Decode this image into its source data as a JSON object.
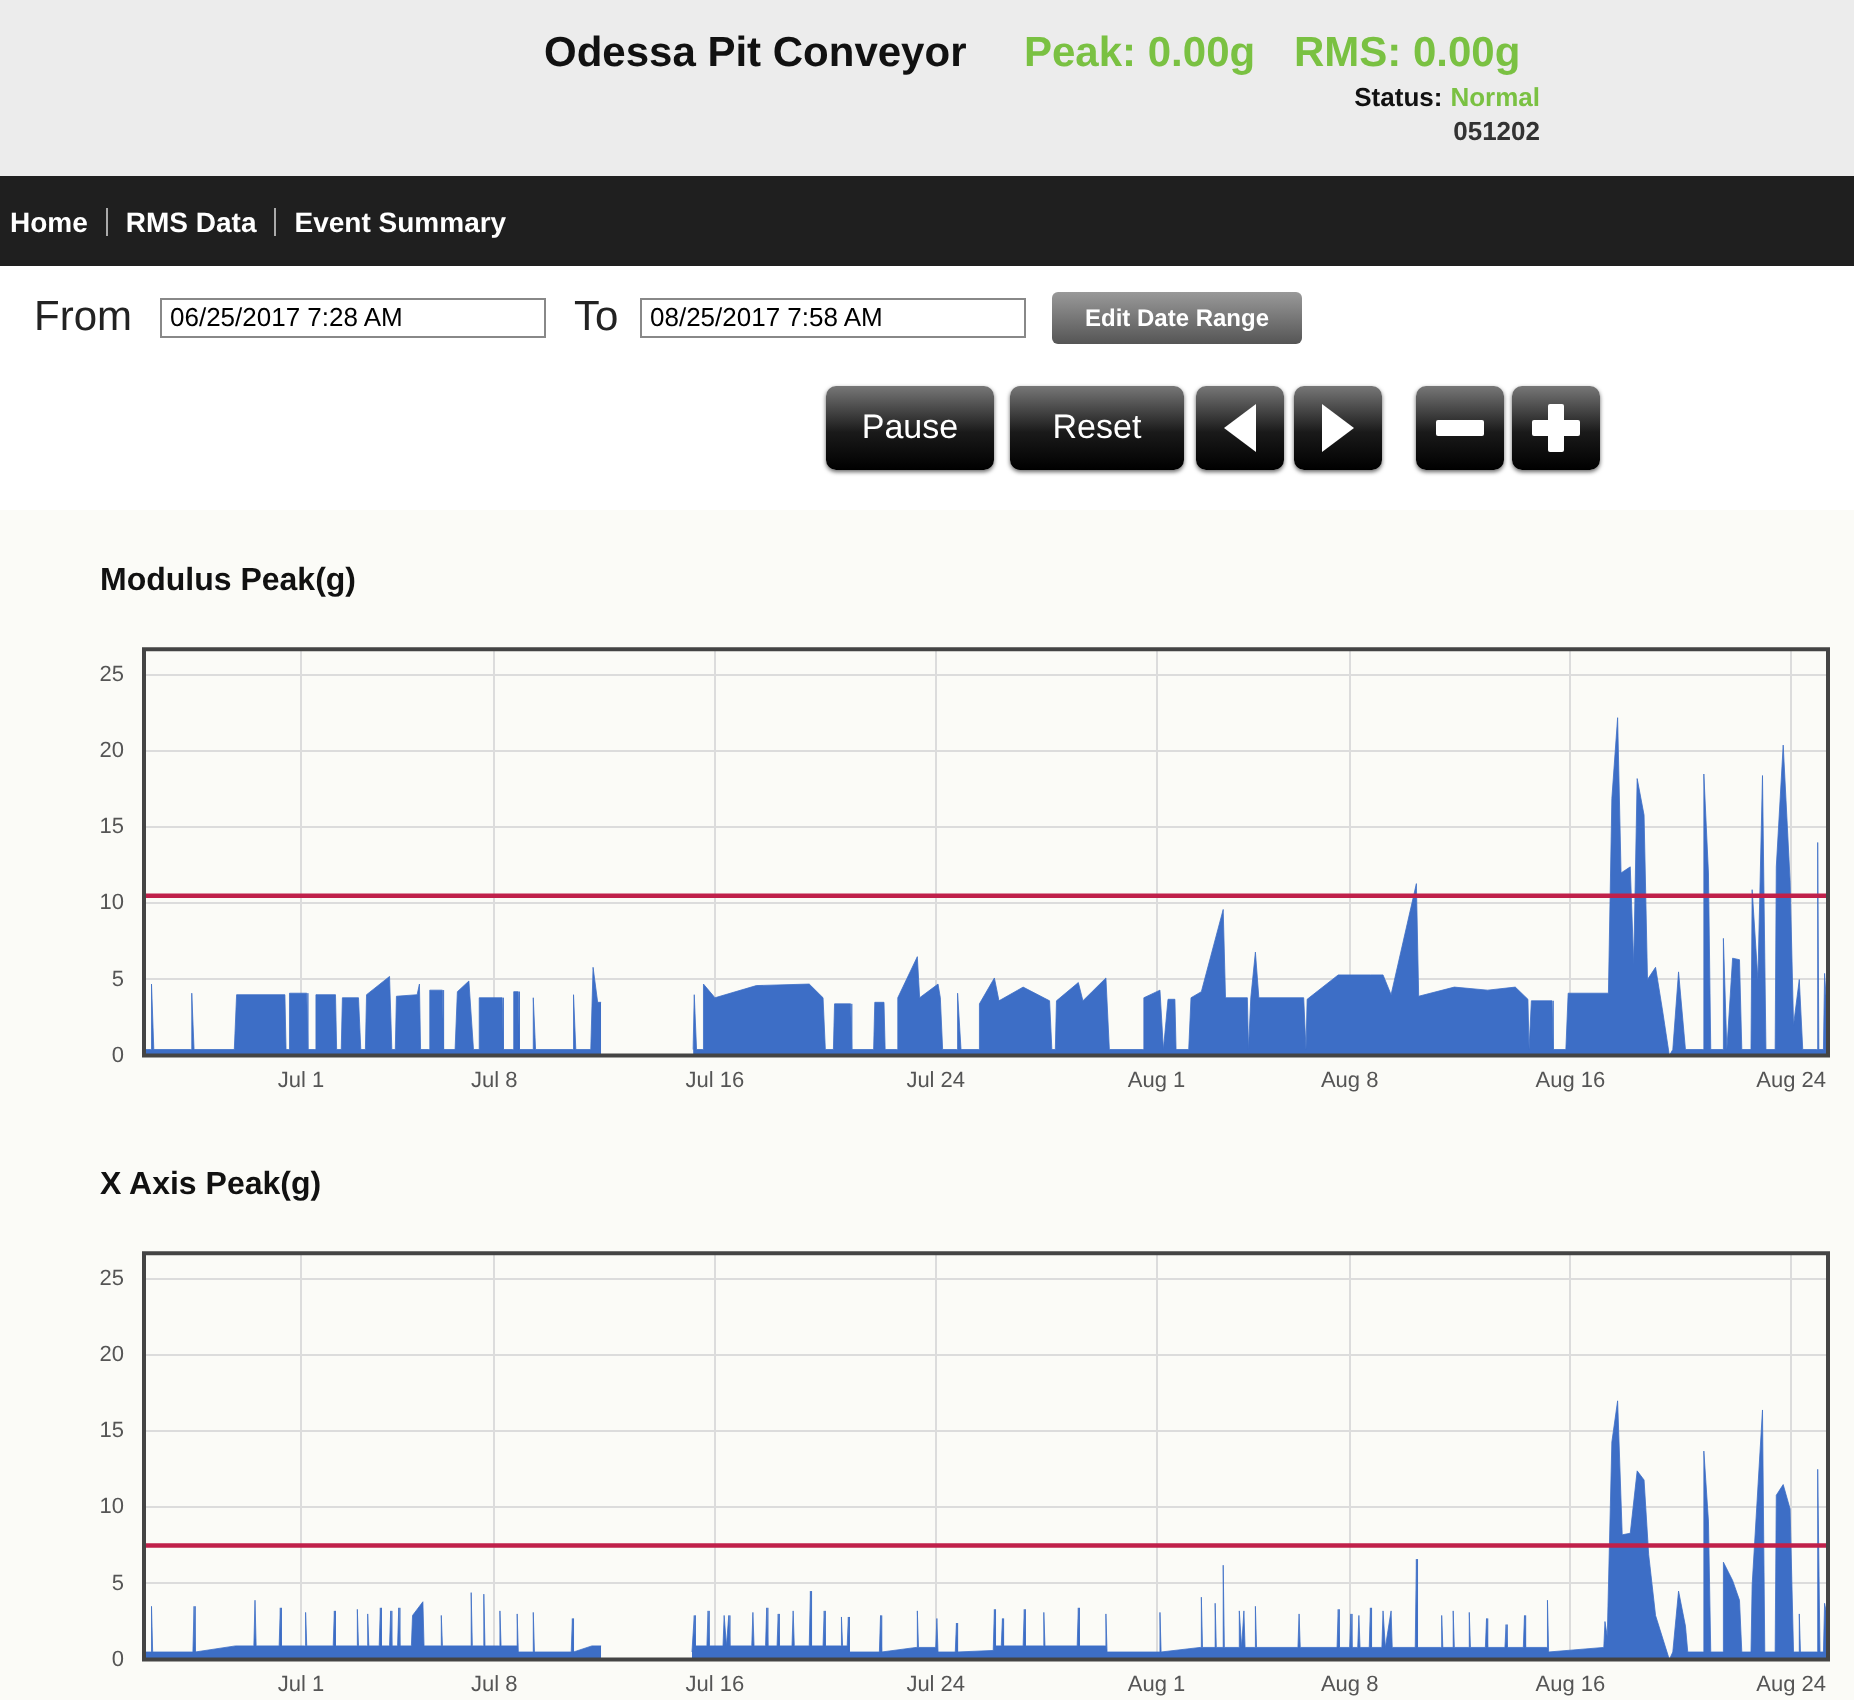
{
  "chart_data": [
    {
      "type": "other",
      "title": "Odessa Pit Conveyor",
      "annotations": [
        "Peak: 0.00g",
        "RMS: 0.00g",
        "Status:",
        "Normal",
        "051202",
        "Home",
        "RMS Data",
        "Event Summary",
        "From",
        "06/25/2017 7:28 AM",
        "To",
        "08/25/2017 7:58 AM",
        "Edit Date Range",
        "Pause",
        "Reset"
      ]
    },
    {
      "type": "area",
      "title": "Modulus Peak(g)",
      "xlim": [
        "2017-06-25T07:28",
        "2017-08-25T07:58"
      ],
      "xticks": [
        {
          "value": "2017-07-01",
          "label": "Jul 1"
        },
        {
          "value": "2017-07-08",
          "label": "Jul 8"
        },
        {
          "value": "2017-07-16",
          "label": "Jul 16"
        },
        {
          "value": "2017-07-24",
          "label": "Jul 24"
        },
        {
          "value": "2017-08-01",
          "label": "Aug 1"
        },
        {
          "value": "2017-08-08",
          "label": "Aug 8"
        },
        {
          "value": "2017-08-16",
          "label": "Aug 16"
        },
        {
          "value": "2017-08-24",
          "label": "Aug 24"
        }
      ],
      "ylim": [
        0,
        26.7
      ],
      "yticks": [
        0,
        5,
        10,
        15,
        20,
        25
      ],
      "grid": true,
      "ref_lines": [
        {
          "axis": "y",
          "value": 10.5,
          "color": "#c0204a"
        }
      ],
      "series": [
        {
          "color": "#3d6ec6",
          "x": [
            "2017-06-25T07:30",
            "2017-06-25T13:00",
            "2017-06-25T14:00",
            "2017-06-25T16:00",
            "2017-06-27T00:00",
            "2017-06-27T01:00",
            "2017-06-27T03:00",
            "2017-06-28T14:00",
            "2017-06-28T16:00",
            "2017-06-30T10:00",
            "2017-06-30T11:00",
            "2017-06-30T13:00",
            "2017-06-30T14:00",
            "2017-07-01T05:00",
            "2017-07-01T06:00",
            "2017-07-01T12:00",
            "2017-07-01T13:00",
            "2017-07-02T06:00",
            "2017-07-02T07:00",
            "2017-07-02T11:00",
            "2017-07-02T12:00",
            "2017-07-03T02:00",
            "2017-07-03T04:00",
            "2017-07-03T08:00",
            "2017-07-03T09:00",
            "2017-07-04T05:00",
            "2017-07-04T07:00",
            "2017-07-04T10:00",
            "2017-07-04T11:00",
            "2017-07-05T05:00",
            "2017-07-05T07:00",
            "2017-07-05T08:00",
            "2017-07-05T15:00",
            "2017-07-05T16:00",
            "2017-07-06T03:00",
            "2017-07-06T04:00",
            "2017-07-06T14:00",
            "2017-07-06T16:00",
            "2017-07-07T02:00",
            "2017-07-07T06:00",
            "2017-07-07T10:00",
            "2017-07-07T11:00",
            "2017-07-08T07:00",
            "2017-07-08T08:00",
            "2017-07-08T16:00",
            "2017-07-08T17:00",
            "2017-07-08T21:00",
            "2017-07-08T22:00",
            "2017-07-09T09:00",
            "2017-07-09T10:00",
            "2017-07-09T12:00",
            "2017-07-10T20:00",
            "2017-07-10T21:00",
            "2017-07-10T23:00",
            "2017-07-11T12:00",
            "2017-07-11T14:00",
            "2017-07-11T18:00",
            "2017-07-11T21:00",
            "2017-07-13T12:00",
            "2017-07-15T05:00",
            "2017-07-15T06:00",
            "2017-07-15T08:00",
            "2017-07-15T13:00",
            "2017-07-15T14:00",
            "2017-07-16T00:00",
            "2017-07-17T12:00",
            "2017-07-19T10:00",
            "2017-07-19T22:00",
            "2017-07-20T00:00",
            "2017-07-20T07:00",
            "2017-07-20T08:00",
            "2017-07-20T22:00",
            "2017-07-20T23:00",
            "2017-07-21T18:00",
            "2017-07-21T19:00",
            "2017-07-22T03:00",
            "2017-07-22T04:00",
            "2017-07-22T14:00",
            "2017-07-22T15:00",
            "2017-07-23T08:00",
            "2017-07-23T10:00",
            "2017-07-24T02:00",
            "2017-07-24T04:00",
            "2017-07-24T06:00",
            "2017-07-24T18:00",
            "2017-07-24T19:00",
            "2017-07-24T22:00",
            "2017-07-25T13:00",
            "2017-07-25T14:00",
            "2017-07-26T03:00",
            "2017-07-26T07:00",
            "2017-07-27T04:00",
            "2017-07-28T03:00",
            "2017-07-28T05:00",
            "2017-07-28T08:00",
            "2017-07-28T09:00",
            "2017-07-29T04:00",
            "2017-07-29T08:00",
            "2017-07-30T04:00",
            "2017-07-30T07:00",
            "2017-07-31T12:00",
            "2017-07-31T13:00",
            "2017-08-01T03:00",
            "2017-08-01T06:00",
            "2017-08-01T10:00",
            "2017-08-01T16:00",
            "2017-08-01T17:00",
            "2017-08-02T04:00",
            "2017-08-02T06:00",
            "2017-08-02T15:00",
            "2017-08-03T10:00",
            "2017-08-03T12:00",
            "2017-08-04T07:00",
            "2017-08-04T08:00",
            "2017-08-04T10:00",
            "2017-08-04T14:00",
            "2017-08-04T17:00",
            "2017-08-06T08:00",
            "2017-08-06T10:00",
            "2017-08-06T11:00",
            "2017-08-07T14:00",
            "2017-08-08T18:00",
            "2017-08-09T05:00",
            "2017-08-09T12:00",
            "2017-08-10T10:00",
            "2017-08-10T12:00",
            "2017-08-11T19:00",
            "2017-08-13T00:00",
            "2017-08-14T00:00",
            "2017-08-14T11:00",
            "2017-08-14T12:00",
            "2017-08-14T14:00",
            "2017-08-15T08:00",
            "2017-08-15T09:00",
            "2017-08-15T20:00",
            "2017-08-15T22:00",
            "2017-08-17T09:00",
            "2017-08-17T12:00",
            "2017-08-17T17:00",
            "2017-08-17T20:00",
            "2017-08-18T04:00",
            "2017-08-18T07:00",
            "2017-08-18T10:00",
            "2017-08-18T16:00",
            "2017-08-18T19:00",
            "2017-08-19T02:00",
            "2017-08-19T08:00",
            "2017-08-19T14:00",
            "2017-08-19T17:00",
            "2017-08-19T22:00",
            "2017-08-20T04:00",
            "2017-08-20T19:00",
            "2017-08-20T20:00",
            "2017-08-21T00:00",
            "2017-08-21T02:00",
            "2017-08-21T12:00",
            "2017-08-21T13:00",
            "2017-08-21T16:00",
            "2017-08-21T21:00",
            "2017-08-22T03:00",
            "2017-08-22T05:00",
            "2017-08-22T13:00",
            "2017-08-22T14:00",
            "2017-08-22T19:00",
            "2017-08-22T23:00",
            "2017-08-23T02:00",
            "2017-08-23T10:00",
            "2017-08-23T11:00",
            "2017-08-23T17:00",
            "2017-08-23T23:00",
            "2017-08-24T02:00",
            "2017-08-24T07:00",
            "2017-08-24T10:00",
            "2017-08-24T22:00",
            "2017-08-24T23:00",
            "2017-08-25T00:00",
            "2017-08-25T04:00",
            "2017-08-25T05:00",
            "2017-08-25T07:00"
          ],
          "values": [
            0.4,
            0.4,
            4.7,
            0.4,
            0.4,
            4.1,
            0.4,
            0.4,
            4.0,
            4.0,
            0.4,
            0.4,
            4.1,
            4.1,
            0.4,
            0.4,
            4.0,
            4.0,
            0.4,
            0.4,
            3.8,
            3.8,
            0.4,
            0.4,
            4.0,
            5.2,
            0.4,
            0.4,
            3.9,
            4.0,
            4.7,
            0.4,
            0.4,
            4.3,
            4.3,
            0.4,
            0.4,
            4.2,
            4.9,
            0.4,
            0.4,
            3.8,
            3.8,
            0.4,
            0.4,
            4.2,
            4.2,
            0.4,
            0.4,
            3.8,
            0.4,
            0.4,
            4.0,
            0.4,
            0.4,
            5.8,
            3.5,
            3.5,
            null,
            0.4,
            4.0,
            0.4,
            0.4,
            4.7,
            3.8,
            4.6,
            4.7,
            3.8,
            0.4,
            0.4,
            3.4,
            3.4,
            0.4,
            0.4,
            3.5,
            3.5,
            0.4,
            0.4,
            3.8,
            6.5,
            3.8,
            4.7,
            3.8,
            0.4,
            0.4,
            4.1,
            0.4,
            0.4,
            3.4,
            5.1,
            3.6,
            4.5,
            3.6,
            0.4,
            0.4,
            3.6,
            4.8,
            3.6,
            5.1,
            0.4,
            0.4,
            3.8,
            4.3,
            0.4,
            3.7,
            3.7,
            0.4,
            0.4,
            3.8,
            4.2,
            9.6,
            3.8,
            3.8,
            0.4,
            3.8,
            6.8,
            3.8,
            3.8,
            0.4,
            3.7,
            5.3,
            5.3,
            5.3,
            4.0,
            11.3,
            3.9,
            4.5,
            4.3,
            4.5,
            3.7,
            0.4,
            3.6,
            3.6,
            0.4,
            0.4,
            4.1,
            4.1,
            16.9,
            22.2,
            12,
            12.4,
            6,
            18.2,
            15.8,
            5,
            5.8,
            3,
            0,
            0.4,
            5.5,
            0.4,
            0.4,
            18.5,
            12,
            0.4,
            0.4,
            7.7,
            0.4,
            6.4,
            6.3,
            0.4,
            0.4,
            10.9,
            5,
            18.4,
            0.4,
            0.4,
            12.4,
            20.4,
            11.5,
            2,
            5,
            0.4,
            0.4,
            14.0,
            0.4,
            0.4,
            5.4,
            3.0
          ]
        }
      ]
    },
    {
      "type": "area",
      "title": "X Axis Peak(g)",
      "xlim": [
        "2017-06-25T07:28",
        "2017-08-25T07:58"
      ],
      "xticks": [
        {
          "value": "2017-07-01",
          "label": "Jul 1"
        },
        {
          "value": "2017-07-08",
          "label": "Jul 8"
        },
        {
          "value": "2017-07-16",
          "label": "Jul 16"
        },
        {
          "value": "2017-07-24",
          "label": "Jul 24"
        },
        {
          "value": "2017-08-01",
          "label": "Aug 1"
        },
        {
          "value": "2017-08-08",
          "label": "Aug 8"
        },
        {
          "value": "2017-08-16",
          "label": "Aug 16"
        },
        {
          "value": "2017-08-24",
          "label": "Aug 24"
        }
      ],
      "ylim": [
        0,
        26.7
      ],
      "yticks": [
        0,
        5,
        10,
        15,
        20,
        25
      ],
      "grid": true,
      "ref_lines": [
        {
          "axis": "y",
          "value": 7.5,
          "color": "#c0204a"
        }
      ],
      "series": [
        {
          "color": "#3d6ec6",
          "x": [
            "2017-06-25T07:30",
            "2017-06-25T13:00",
            "2017-06-25T14:00",
            "2017-06-25T15:00",
            "2017-06-27T02:00",
            "2017-06-27T03:00",
            "2017-06-27T04:00",
            "2017-06-28T15:00",
            "2017-06-29T07:00",
            "2017-06-29T08:00",
            "2017-06-29T09:00",
            "2017-06-30T05:00",
            "2017-06-30T06:00",
            "2017-06-30T07:00",
            "2017-07-01T03:00",
            "2017-07-01T04:00",
            "2017-07-01T05:00",
            "2017-07-02T04:00",
            "2017-07-02T05:00",
            "2017-07-02T06:00",
            "2017-07-03T00:00",
            "2017-07-03T01:00",
            "2017-07-03T02:00",
            "2017-07-03T09:00",
            "2017-07-03T10:00",
            "2017-07-03T11:00",
            "2017-07-03T20:00",
            "2017-07-03T21:00",
            "2017-07-03T22:00",
            "2017-07-04T05:00",
            "2017-07-04T06:00",
            "2017-07-04T07:00",
            "2017-07-04T12:00",
            "2017-07-04T13:00",
            "2017-07-04T14:00",
            "2017-07-05T00:00",
            "2017-07-05T01:00",
            "2017-07-05T10:00",
            "2017-07-05T11:00",
            "2017-07-06T01:00",
            "2017-07-06T02:00",
            "2017-07-06T03:00",
            "2017-07-07T03:00",
            "2017-07-07T04:00",
            "2017-07-07T05:00",
            "2017-07-07T14:00",
            "2017-07-07T15:00",
            "2017-07-07T16:00",
            "2017-07-08T04:00",
            "2017-07-08T05:00",
            "2017-07-08T06:00",
            "2017-07-08T19:00",
            "2017-07-08T20:00",
            "2017-07-08T21:00",
            "2017-07-09T09:00",
            "2017-07-09T10:00",
            "2017-07-09T11:00",
            "2017-07-10T19:00",
            "2017-07-10T20:00",
            "2017-07-10T21:00",
            "2017-07-11T13:00",
            "2017-07-11T21:00",
            "2017-07-13T12:00",
            "2017-07-15T04:00",
            "2017-07-15T06:00",
            "2017-07-15T07:00",
            "2017-07-15T17:00",
            "2017-07-15T18:00",
            "2017-07-15T19:00",
            "2017-07-16T07:00",
            "2017-07-16T08:00",
            "2017-07-16T10:00",
            "2017-07-16T12:00",
            "2017-07-16T13:00",
            "2017-07-17T08:00",
            "2017-07-17T09:00",
            "2017-07-17T10:00",
            "2017-07-17T20:00",
            "2017-07-17T21:00",
            "2017-07-17T22:00",
            "2017-07-18T06:00",
            "2017-07-18T07:00",
            "2017-07-18T08:00",
            "2017-07-18T19:00",
            "2017-07-18T20:00",
            "2017-07-18T21:00",
            "2017-07-19T10:00",
            "2017-07-19T11:00",
            "2017-07-19T12:00",
            "2017-07-19T22:00",
            "2017-07-19T23:00",
            "2017-07-20T00:00",
            "2017-07-20T13:00",
            "2017-07-20T14:00",
            "2017-07-20T15:00",
            "2017-07-20T19:00",
            "2017-07-20T20:00",
            "2017-07-20T21:00",
            "2017-07-21T23:00",
            "2017-07-22T00:00",
            "2017-07-22T01:00",
            "2017-07-23T07:00",
            "2017-07-23T08:00",
            "2017-07-23T09:00",
            "2017-07-24T00:00",
            "2017-07-24T01:00",
            "2017-07-24T02:00",
            "2017-07-24T17:00",
            "2017-07-24T18:00",
            "2017-07-24T19:00",
            "2017-07-26T02:00",
            "2017-07-26T03:00",
            "2017-07-26T04:00",
            "2017-07-26T09:00",
            "2017-07-26T10:00",
            "2017-07-26T11:00",
            "2017-07-27T04:00",
            "2017-07-27T05:00",
            "2017-07-27T06:00",
            "2017-07-27T21:00",
            "2017-07-27T22:00",
            "2017-07-27T23:00",
            "2017-07-29T03:00",
            "2017-07-29T04:00",
            "2017-07-29T05:00",
            "2017-07-30T03:00",
            "2017-07-30T04:00",
            "2017-07-30T05:00",
            "2017-08-01T02:00",
            "2017-08-01T03:00",
            "2017-08-01T04:00",
            "2017-08-02T14:00",
            "2017-08-02T15:00",
            "2017-08-02T16:00",
            "2017-08-03T02:00",
            "2017-08-03T03:00",
            "2017-08-03T04:00",
            "2017-08-03T09:00",
            "2017-08-03T10:00",
            "2017-08-03T11:00",
            "2017-08-03T23:00",
            "2017-08-04T00:00",
            "2017-08-04T02:00",
            "2017-08-04T04:00",
            "2017-08-04T05:00",
            "2017-08-04T13:00",
            "2017-08-04T14:00",
            "2017-08-04T15:00",
            "2017-08-06T03:00",
            "2017-08-06T04:00",
            "2017-08-06T05:00",
            "2017-08-07T13:00",
            "2017-08-07T14:00",
            "2017-08-07T15:00",
            "2017-08-08T00:00",
            "2017-08-08T01:00",
            "2017-08-08T02:00",
            "2017-08-08T07:00",
            "2017-08-08T08:00",
            "2017-08-08T09:00",
            "2017-08-08T17:00",
            "2017-08-08T18:00",
            "2017-08-08T19:00",
            "2017-08-09T04:00",
            "2017-08-09T05:00",
            "2017-08-09T07:00",
            "2017-08-09T12:00",
            "2017-08-09T13:00",
            "2017-08-10T09:00",
            "2017-08-10T10:00",
            "2017-08-10T11:00",
            "2017-08-11T07:00",
            "2017-08-11T08:00",
            "2017-08-11T09:00",
            "2017-08-11T17:00",
            "2017-08-11T18:00",
            "2017-08-11T19:00",
            "2017-08-12T07:00",
            "2017-08-12T08:00",
            "2017-08-12T09:00",
            "2017-08-12T22:00",
            "2017-08-12T23:00",
            "2017-08-13T00:00",
            "2017-08-13T15:00",
            "2017-08-13T16:00",
            "2017-08-13T17:00",
            "2017-08-14T07:00",
            "2017-08-14T08:00",
            "2017-08-14T09:00",
            "2017-08-15T03:00",
            "2017-08-15T04:00",
            "2017-08-15T05:00",
            "2017-08-17T05:00",
            "2017-08-17T06:00",
            "2017-08-17T08:00",
            "2017-08-17T12:00",
            "2017-08-17T17:00",
            "2017-08-17T21:00",
            "2017-08-18T04:00",
            "2017-08-18T10:00",
            "2017-08-18T16:00",
            "2017-08-18T20:00",
            "2017-08-19T02:00",
            "2017-08-19T14:00",
            "2017-08-19T17:00",
            "2017-08-19T22:00",
            "2017-08-20T04:00",
            "2017-08-20T06:00",
            "2017-08-20T19:00",
            "2017-08-20T20:00",
            "2017-08-21T00:00",
            "2017-08-21T02:00",
            "2017-08-21T12:00",
            "2017-08-21T13:00",
            "2017-08-21T21:00",
            "2017-08-22T03:00",
            "2017-08-22T05:00",
            "2017-08-22T13:00",
            "2017-08-22T14:00",
            "2017-08-22T23:00",
            "2017-08-23T01:00",
            "2017-08-23T10:00",
            "2017-08-23T11:00",
            "2017-08-23T17:00",
            "2017-08-23T23:00",
            "2017-08-24T02:00",
            "2017-08-24T06:00",
            "2017-08-24T07:00",
            "2017-08-24T08:00",
            "2017-08-24T22:00",
            "2017-08-24T23:00",
            "2017-08-25T01:00",
            "2017-08-25T04:00",
            "2017-08-25T05:00",
            "2017-08-25T07:00"
          ],
          "values": [
            0.5,
            0.5,
            3.5,
            0.5,
            0.5,
            3.5,
            0.5,
            0.9,
            0.9,
            3.9,
            0.9,
            0.9,
            3.4,
            0.9,
            0.9,
            3.1,
            0.9,
            0.9,
            3.2,
            0.9,
            0.9,
            3.3,
            0.9,
            0.9,
            3.0,
            0.9,
            0.9,
            3.4,
            0.9,
            0.9,
            3.2,
            0.9,
            0.9,
            3.4,
            0.9,
            0.9,
            2.9,
            3.8,
            0.9,
            0.9,
            2.9,
            0.9,
            0.9,
            4.4,
            0.9,
            0.9,
            4.3,
            0.9,
            0.9,
            3.2,
            0.9,
            0.9,
            3.0,
            0.5,
            0.5,
            3.1,
            0.5,
            0.5,
            2.7,
            0.5,
            0.9,
            0.9,
            null,
            0.5,
            2.9,
            0.9,
            0.9,
            3.2,
            0.9,
            0.9,
            2.9,
            0.9,
            2.9,
            0.9,
            0.9,
            3.1,
            0.9,
            0.9,
            3.4,
            0.9,
            0.9,
            3.0,
            0.9,
            0.9,
            3.2,
            0.9,
            0.9,
            4.5,
            0.9,
            0.9,
            3.2,
            0.9,
            0.9,
            2.8,
            0.9,
            0.9,
            2.8,
            0.5,
            0.5,
            2.9,
            0.5,
            0.8,
            3.2,
            0.8,
            0.8,
            2.7,
            0.5,
            0.5,
            2.4,
            0.5,
            0.6,
            3.3,
            0.9,
            0.9,
            2.7,
            0.9,
            0.9,
            3.3,
            0.9,
            0.9,
            3.1,
            0.9,
            0.9,
            3.4,
            0.9,
            0.9,
            3.0,
            0.5,
            0.5,
            3.1,
            0.5,
            0.8,
            4.1,
            0.8,
            0.8,
            3.7,
            0.8,
            0.8,
            6.2,
            0.8,
            0.8,
            3.2,
            0.8,
            3.2,
            0.8,
            0.8,
            3.5,
            0.8,
            0.8,
            3.0,
            0.8,
            0.8,
            3.3,
            0.8,
            0.8,
            3.0,
            0.8,
            0.8,
            2.9,
            0.8,
            0.8,
            3.4,
            0.8,
            0.8,
            3.2,
            0.8,
            3.2,
            0.8,
            0.8,
            6.6,
            0.8,
            0.8,
            2.9,
            0.8,
            0.8,
            3.2,
            0.8,
            0.8,
            3.1,
            0.8,
            0.8,
            2.7,
            0.8,
            0.8,
            2.3,
            0.8,
            0.8,
            2.9,
            0.8,
            0.8,
            3.9,
            0.5,
            0.8,
            2.5,
            1.5,
            14.3,
            17.0,
            8.2,
            8.3,
            12.4,
            11.8,
            6.9,
            2.9,
            0,
            0.5,
            4.5,
            2.2,
            0.5,
            0.5,
            13.7,
            9.1,
            0.5,
            0.5,
            6.4,
            5.2,
            3.9,
            0.5,
            0.5,
            4.9,
            16.4,
            0.5,
            0.5,
            10.8,
            11.5,
            9.9,
            0.5,
            0.5,
            3.0,
            0.5,
            0.5,
            12.5,
            0.5,
            0.5,
            3.7,
            2.9
          ]
        }
      ]
    }
  ]
}
